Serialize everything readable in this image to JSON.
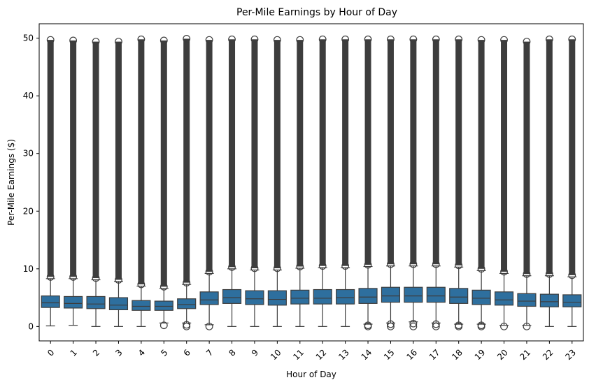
{
  "chart_data": {
    "type": "box",
    "title": "Per-Mile Earnings by Hour of Day",
    "xlabel": "Hour of Day",
    "ylabel": "Per-Mile Earnings ($)",
    "ylim": [
      -2.5,
      52.5
    ],
    "yticks": [
      0,
      10,
      20,
      30,
      40,
      50
    ],
    "categories": [
      "0",
      "1",
      "2",
      "3",
      "4",
      "5",
      "6",
      "7",
      "8",
      "9",
      "10",
      "11",
      "12",
      "13",
      "14",
      "15",
      "16",
      "17",
      "18",
      "19",
      "20",
      "21",
      "22",
      "23"
    ],
    "box_color": "#2e6f9e",
    "line_color": "#3d3d3d",
    "series": [
      {
        "x": "0",
        "whisker_low": 0.1,
        "q1": 3.3,
        "median": 4.1,
        "q3": 5.3,
        "whisker_high": 8.3,
        "outliers_high": [
          8.6,
          49.7
        ],
        "outliers_low": []
      },
      {
        "x": "1",
        "whisker_low": 0.2,
        "q1": 3.2,
        "median": 4.0,
        "q3": 5.2,
        "whisker_high": 8.3,
        "outliers_high": [
          8.6,
          49.6
        ],
        "outliers_low": []
      },
      {
        "x": "2",
        "whisker_low": 0.0,
        "q1": 3.1,
        "median": 3.9,
        "q3": 5.2,
        "whisker_high": 8.1,
        "outliers_high": [
          8.4,
          49.4
        ],
        "outliers_low": []
      },
      {
        "x": "3",
        "whisker_low": 0.0,
        "q1": 2.9,
        "median": 3.7,
        "q3": 5.0,
        "whisker_high": 7.8,
        "outliers_high": [
          8.1,
          49.4
        ],
        "outliers_low": []
      },
      {
        "x": "4",
        "whisker_low": 0.0,
        "q1": 2.8,
        "median": 3.5,
        "q3": 4.5,
        "whisker_high": 7.0,
        "outliers_high": [
          7.3,
          49.8
        ],
        "outliers_low": []
      },
      {
        "x": "5",
        "whisker_low": 0.6,
        "q1": 2.8,
        "median": 3.5,
        "q3": 4.4,
        "whisker_high": 6.6,
        "outliers_high": [
          6.9,
          49.6
        ],
        "outliers_low": [
          0.2
        ]
      },
      {
        "x": "6",
        "whisker_low": 0.6,
        "q1": 3.1,
        "median": 3.8,
        "q3": 4.8,
        "whisker_high": 7.3,
        "outliers_high": [
          7.6,
          49.9
        ],
        "outliers_low": [
          0.0,
          0.3
        ]
      },
      {
        "x": "7",
        "whisker_low": 0.3,
        "q1": 3.8,
        "median": 4.6,
        "q3": 6.0,
        "whisker_high": 9.2,
        "outliers_high": [
          9.5,
          49.7
        ],
        "outliers_low": [
          0.0
        ]
      },
      {
        "x": "8",
        "whisker_low": 0.0,
        "q1": 4.0,
        "median": 5.0,
        "q3": 6.4,
        "whisker_high": 10.0,
        "outliers_high": [
          10.3,
          49.8
        ],
        "outliers_low": []
      },
      {
        "x": "9",
        "whisker_low": 0.0,
        "q1": 3.8,
        "median": 4.8,
        "q3": 6.2,
        "whisker_high": 9.8,
        "outliers_high": [
          10.1,
          49.8
        ],
        "outliers_low": []
      },
      {
        "x": "10",
        "whisker_low": 0.0,
        "q1": 3.7,
        "median": 4.7,
        "q3": 6.2,
        "whisker_high": 9.8,
        "outliers_high": [
          10.1,
          49.7
        ],
        "outliers_low": []
      },
      {
        "x": "11",
        "whisker_low": 0.0,
        "q1": 3.9,
        "median": 4.9,
        "q3": 6.3,
        "whisker_high": 10.1,
        "outliers_high": [
          10.4,
          49.7
        ],
        "outliers_low": []
      },
      {
        "x": "12",
        "whisker_low": 0.0,
        "q1": 3.9,
        "median": 4.9,
        "q3": 6.4,
        "whisker_high": 10.2,
        "outliers_high": [
          10.5,
          49.8
        ],
        "outliers_low": []
      },
      {
        "x": "13",
        "whisker_low": 0.0,
        "q1": 3.9,
        "median": 5.0,
        "q3": 6.4,
        "whisker_high": 10.2,
        "outliers_high": [
          10.5,
          49.8
        ],
        "outliers_low": []
      },
      {
        "x": "14",
        "whisker_low": 0.4,
        "q1": 4.0,
        "median": 5.1,
        "q3": 6.6,
        "whisker_high": 10.4,
        "outliers_high": [
          10.7,
          49.8
        ],
        "outliers_low": [
          0.0,
          0.2
        ]
      },
      {
        "x": "15",
        "whisker_low": 0.6,
        "q1": 4.2,
        "median": 5.3,
        "q3": 6.8,
        "whisker_high": 10.5,
        "outliers_high": [
          10.8,
          49.8
        ],
        "outliers_low": [
          0.0,
          0.4
        ]
      },
      {
        "x": "16",
        "whisker_low": 0.8,
        "q1": 4.2,
        "median": 5.3,
        "q3": 6.8,
        "whisker_high": 10.5,
        "outliers_high": [
          10.8,
          49.8
        ],
        "outliers_low": [
          0.0,
          0.5
        ]
      },
      {
        "x": "17",
        "whisker_low": 0.6,
        "q1": 4.2,
        "median": 5.3,
        "q3": 6.8,
        "whisker_high": 10.5,
        "outliers_high": [
          10.8,
          49.8
        ],
        "outliers_low": [
          0.0,
          0.4
        ]
      },
      {
        "x": "18",
        "whisker_low": 0.4,
        "q1": 4.0,
        "median": 5.1,
        "q3": 6.6,
        "whisker_high": 10.3,
        "outliers_high": [
          10.6,
          49.8
        ],
        "outliers_low": [
          0.0,
          0.2
        ]
      },
      {
        "x": "19",
        "whisker_low": 0.4,
        "q1": 3.8,
        "median": 4.9,
        "q3": 6.3,
        "whisker_high": 9.7,
        "outliers_high": [
          10.0,
          49.7
        ],
        "outliers_low": [
          0.0,
          0.2
        ]
      },
      {
        "x": "20",
        "whisker_low": 0.2,
        "q1": 3.7,
        "median": 4.6,
        "q3": 6.0,
        "whisker_high": 9.2,
        "outliers_high": [
          9.5,
          49.7
        ],
        "outliers_low": [
          0.0
        ]
      },
      {
        "x": "21",
        "whisker_low": 0.2,
        "q1": 3.5,
        "median": 4.4,
        "q3": 5.7,
        "whisker_high": 8.8,
        "outliers_high": [
          9.1,
          49.4
        ],
        "outliers_low": [
          0.0
        ]
      },
      {
        "x": "22",
        "whisker_low": 0.0,
        "q1": 3.4,
        "median": 4.3,
        "q3": 5.6,
        "whisker_high": 8.8,
        "outliers_high": [
          9.1,
          49.8
        ],
        "outliers_low": []
      },
      {
        "x": "23",
        "whisker_low": 0.0,
        "q1": 3.4,
        "median": 4.2,
        "q3": 5.5,
        "whisker_high": 8.6,
        "outliers_high": [
          8.9,
          49.8
        ],
        "outliers_low": []
      }
    ]
  }
}
